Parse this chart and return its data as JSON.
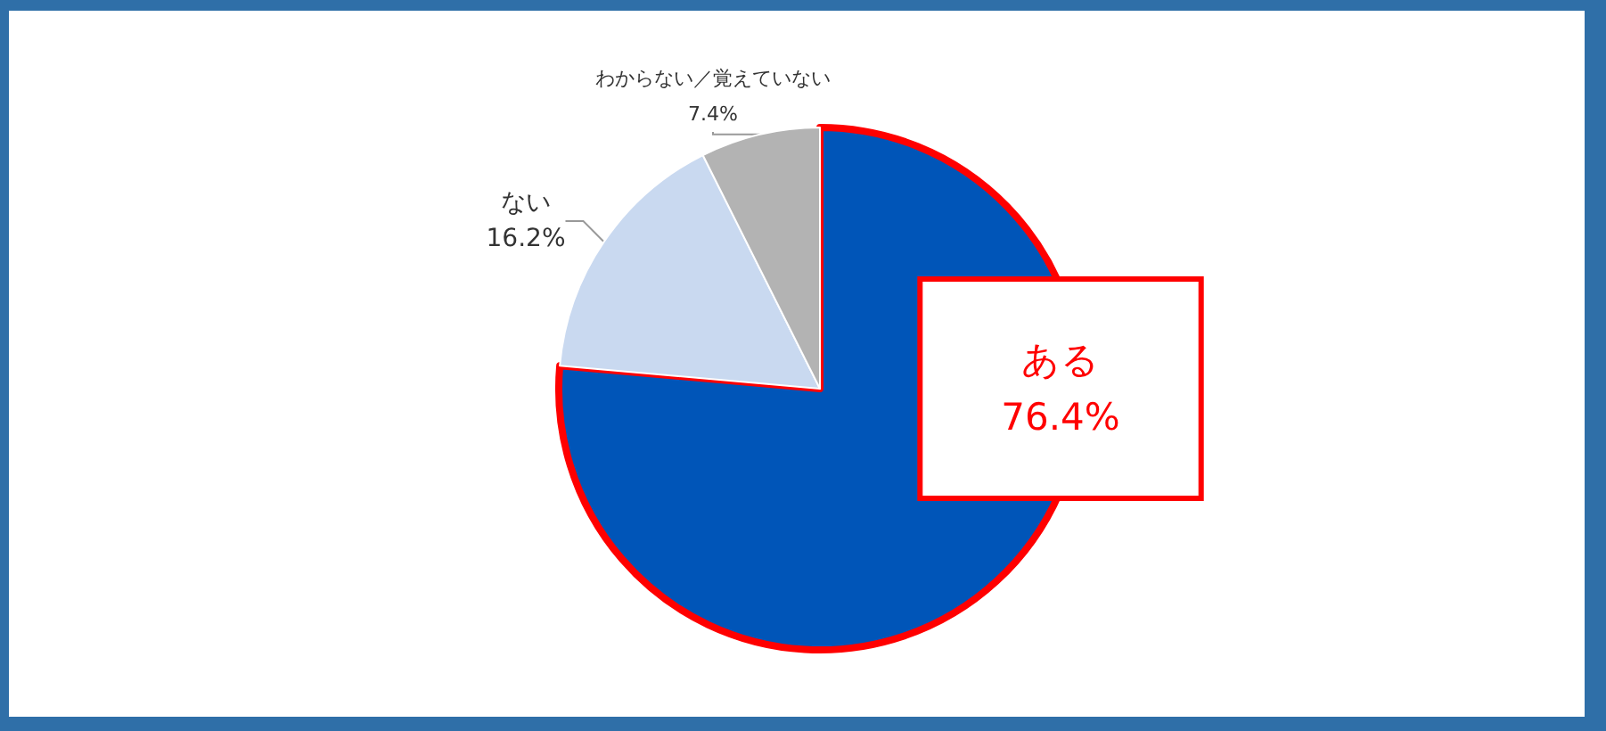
{
  "chart_data": {
    "type": "pie",
    "categories": [
      "ある",
      "ない",
      "わからない／覚えていない"
    ],
    "values": [
      76.4,
      16.2,
      7.4
    ],
    "value_labels": [
      "76.4%",
      "16.2%",
      "7.4%"
    ],
    "colors": [
      "#0055b8",
      "#c9d9f0",
      "#b3b3b3"
    ],
    "legend": false
  }
}
